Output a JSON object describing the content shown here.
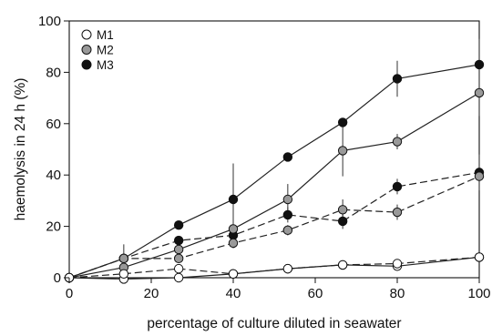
{
  "chart_data": {
    "type": "line",
    "title": "",
    "xlabel": "percentage of culture diluted in seawater",
    "ylabel": "haemolysis in 24 h (%)",
    "xlim": [
      0,
      100
    ],
    "ylim": [
      0,
      100
    ],
    "xticks": [
      0,
      20,
      40,
      60,
      80,
      100
    ],
    "yticks": [
      0,
      20,
      40,
      60,
      80,
      100
    ],
    "legend_position": "top-left",
    "series": [
      {
        "name": "M1",
        "line_style": "solid",
        "marker_fill": "#ffffff",
        "x": [
          0,
          13.3,
          26.7,
          40,
          53.3,
          66.7,
          80,
          100
        ],
        "y": [
          0,
          -0.5,
          0,
          1.5,
          3.5,
          5,
          4.5,
          8
        ],
        "err": [
          0,
          0.7,
          0.7,
          0.7,
          0.7,
          0.7,
          0.7,
          0.7
        ]
      },
      {
        "name": "",
        "line_style": "dashed",
        "marker_fill": "#ffffff",
        "x": [
          0,
          13.3,
          26.7,
          40,
          53.3,
          66.7,
          80,
          100
        ],
        "y": [
          0,
          1.5,
          3.5,
          1.5,
          3.5,
          5,
          5.5,
          8
        ],
        "err": [
          0,
          0.7,
          0.7,
          0.7,
          0.7,
          0.7,
          0.7,
          0.7
        ]
      },
      {
        "name": "M2",
        "line_style": "solid",
        "marker_fill": "#999999",
        "x": [
          0,
          13.3,
          26.7,
          40,
          53.3,
          66.7,
          80,
          100
        ],
        "y": [
          0,
          4,
          11,
          19,
          30.5,
          49.5,
          53,
          72
        ],
        "err": [
          0,
          2,
          2,
          2,
          6,
          10,
          3,
          9
        ]
      },
      {
        "name": "",
        "line_style": "dashed",
        "marker_fill": "#999999",
        "x": [
          0,
          13.3,
          26.7,
          40,
          53.3,
          66.7,
          80,
          100
        ],
        "y": [
          0,
          7.5,
          7.5,
          13.5,
          18.5,
          26.5,
          25.5,
          39.5
        ],
        "err": [
          0,
          1,
          1,
          2,
          2,
          4,
          3,
          5
        ]
      },
      {
        "name": "M3",
        "line_style": "solid",
        "marker_fill": "#111111",
        "x": [
          0,
          13.3,
          26.7,
          40,
          53.3,
          66.7,
          80,
          100
        ],
        "y": [
          0,
          7.5,
          20.5,
          30.5,
          47,
          60.5,
          77.5,
          83
        ],
        "err": [
          0,
          5.5,
          1,
          14,
          1,
          1,
          7,
          10
        ]
      },
      {
        "name": "",
        "line_style": "dashed",
        "marker_fill": "#111111",
        "x": [
          0,
          13.3,
          26.7,
          40,
          53.3,
          66.7,
          80,
          100
        ],
        "y": [
          0,
          7.5,
          14.5,
          16.5,
          24.5,
          22,
          35.5,
          41
        ],
        "err": [
          0,
          1,
          1,
          2,
          3,
          3,
          3,
          7
        ]
      }
    ]
  }
}
